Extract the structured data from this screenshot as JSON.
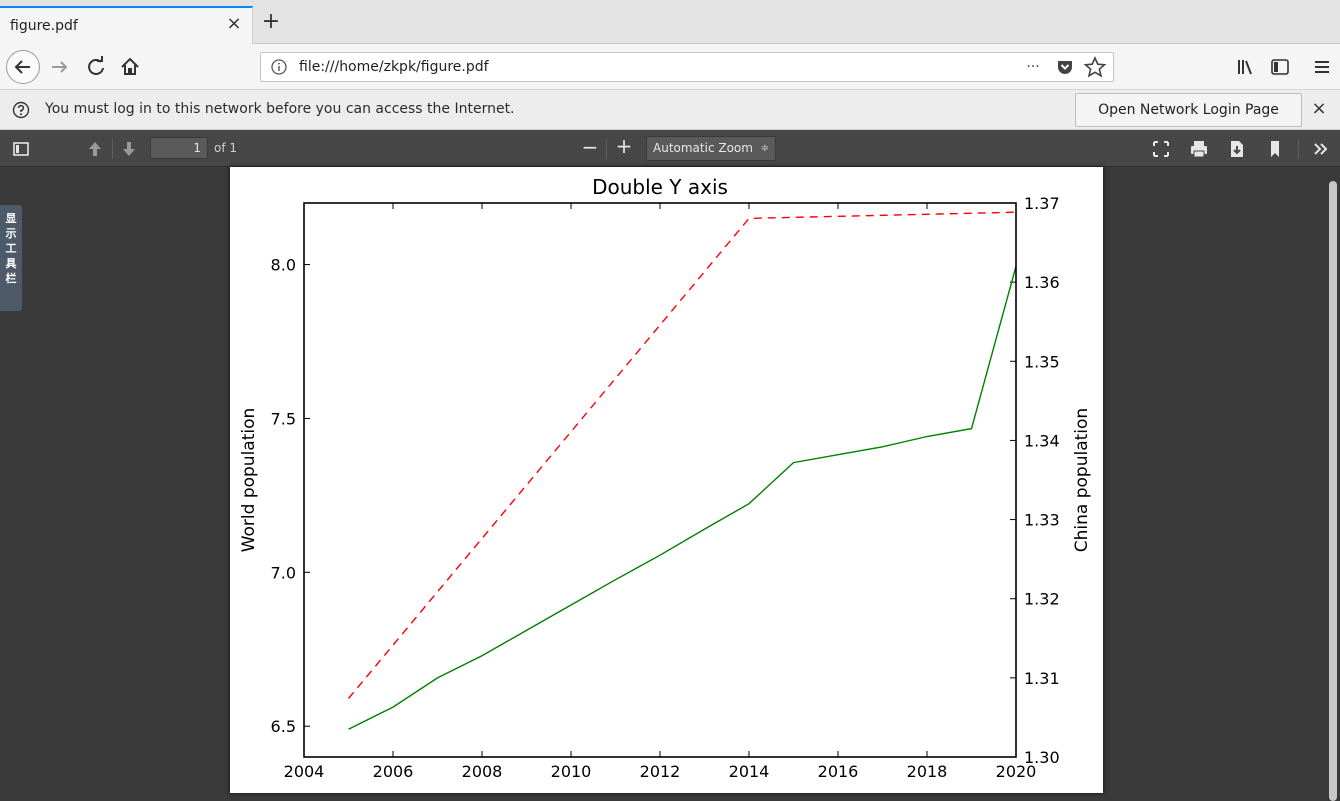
{
  "tab": {
    "title": "figure.pdf",
    "close": "×",
    "new_tab": "+"
  },
  "navbar": {
    "url": "file:///home/zkpk/figure.pdf",
    "more": "···"
  },
  "notification": {
    "text": "You must log in to this network before you can access the Internet.",
    "button": "Open Network Login Page",
    "close": "×"
  },
  "pdf_toolbar": {
    "page_number": "1",
    "page_of": "of 1",
    "zoom": "Automatic Zoom",
    "zoom_arrow": "≑",
    "zoom_out": "−",
    "zoom_in": "+"
  },
  "sidebar_tab": {
    "label_chars": [
      "显",
      "示",
      "工",
      "具",
      "栏"
    ]
  },
  "colors": {
    "world_line": "#ff0000",
    "china_line": "#008000",
    "accent": "#0a84ff"
  },
  "chart_data": {
    "type": "line",
    "title": "Double Y axis",
    "xlabel": "",
    "ylabel": "World population",
    "ylabel_right": "China population",
    "xlim": [
      2004,
      2020
    ],
    "ylim": [
      6.4,
      8.2
    ],
    "ylim_right": [
      1.3,
      1.37
    ],
    "x_ticks": [
      "2004",
      "2006",
      "2008",
      "2010",
      "2012",
      "2014",
      "2016",
      "2018",
      "2020"
    ],
    "y_ticks": [
      "6.5",
      "7.0",
      "7.5",
      "8.0"
    ],
    "y_ticks_right": [
      "1.30",
      "1.31",
      "1.32",
      "1.33",
      "1.34",
      "1.35",
      "1.36",
      "1.37"
    ],
    "series": [
      {
        "name": "World population",
        "axis": "left",
        "style": "dashed",
        "color": "#ff0000",
        "x": [
          2005,
          2014,
          2020
        ],
        "values": [
          6.59,
          8.15,
          8.17
        ]
      },
      {
        "name": "China population",
        "axis": "right",
        "style": "solid",
        "color": "#008000",
        "x": [
          2005,
          2006,
          2007,
          2008,
          2009,
          2010,
          2011,
          2012,
          2013,
          2014,
          2015,
          2016,
          2017,
          2018,
          2019,
          2020
        ],
        "values": [
          1.3035,
          1.3063,
          1.31,
          1.3128,
          1.316,
          1.3192,
          1.3224,
          1.3255,
          1.3288,
          1.332,
          1.3372,
          1.3382,
          1.3392,
          1.3405,
          1.3415,
          1.362
        ]
      }
    ]
  }
}
